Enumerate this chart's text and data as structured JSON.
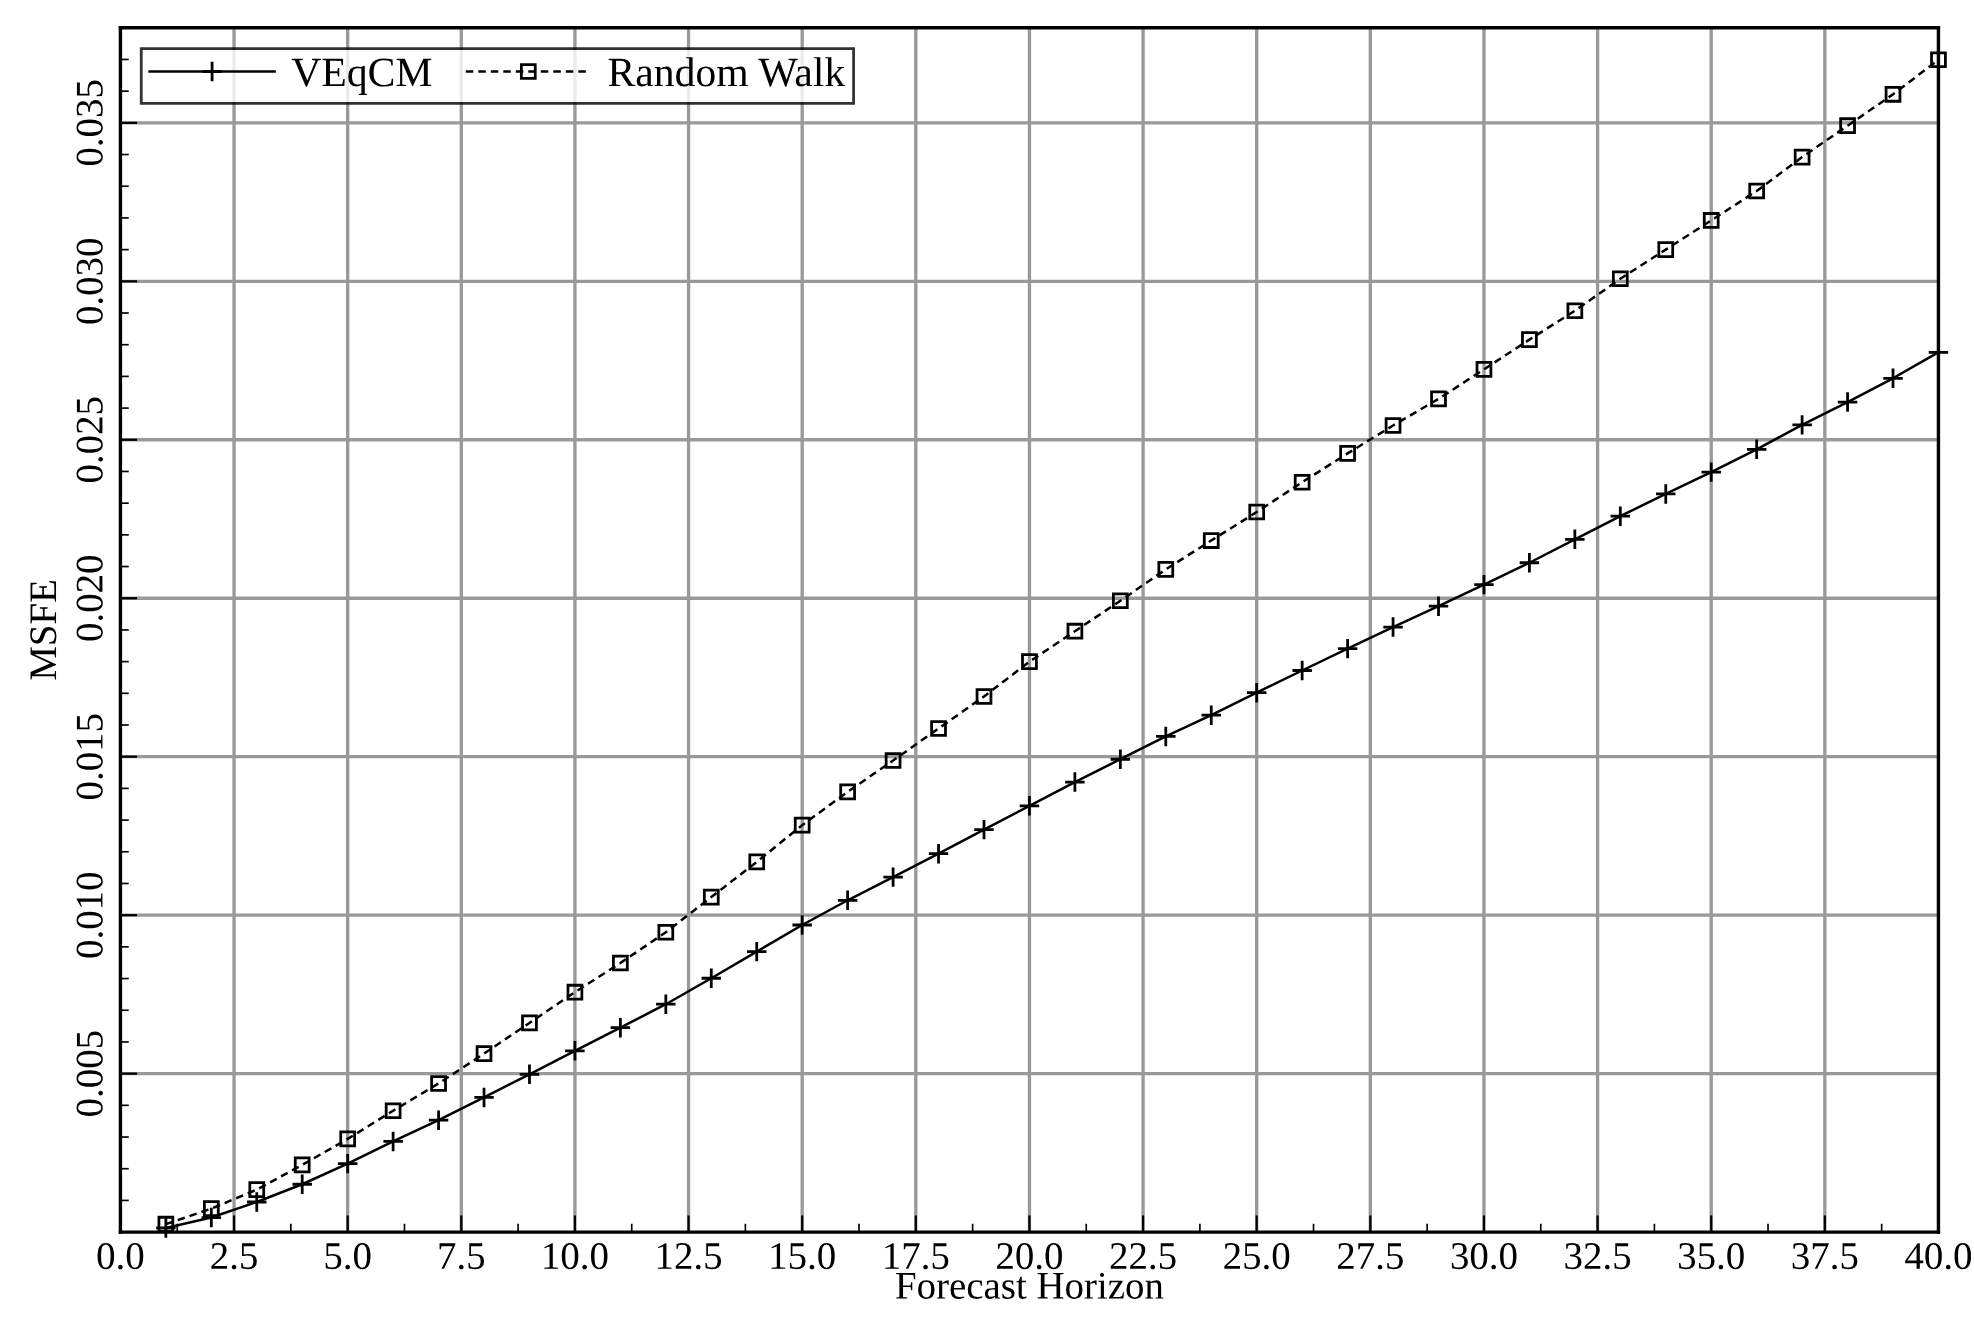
{
  "chart_data": {
    "type": "line",
    "xlabel": "Forecast Horizon",
    "ylabel": "MSFE",
    "x": [
      1,
      2,
      3,
      4,
      5,
      6,
      7,
      8,
      9,
      10,
      11,
      12,
      13,
      14,
      15,
      16,
      17,
      18,
      19,
      20,
      21,
      22,
      23,
      24,
      25,
      26,
      27,
      28,
      29,
      30,
      31,
      32,
      33,
      34,
      35,
      36,
      37,
      38,
      39,
      40
    ],
    "series": [
      {
        "name": "VEqCM",
        "color": "#000000",
        "marker": "cross",
        "line_style": "solid",
        "values": [
          0.00013,
          0.00046,
          0.00095,
          0.00151,
          0.00216,
          0.00286,
          0.00353,
          0.00425,
          0.00498,
          0.00572,
          0.00645,
          0.00719,
          0.00801,
          0.00885,
          0.00969,
          0.01047,
          0.0112,
          0.01194,
          0.0127,
          0.01345,
          0.0142,
          0.01492,
          0.01564,
          0.01631,
          0.01702,
          0.01772,
          0.01841,
          0.01909,
          0.01975,
          0.02043,
          0.02112,
          0.02186,
          0.02259,
          0.02329,
          0.02398,
          0.0247,
          0.02547,
          0.02619,
          0.02694,
          0.02776
        ]
      },
      {
        "name": "Random Walk",
        "color": "#000000",
        "marker": "square",
        "line_style": "dashed",
        "values": [
          0.00025,
          0.00074,
          0.00134,
          0.00212,
          0.00294,
          0.00383,
          0.00469,
          0.00563,
          0.0066,
          0.00757,
          0.00849,
          0.00946,
          0.01057,
          0.01168,
          0.01284,
          0.01389,
          0.01488,
          0.01589,
          0.0169,
          0.018,
          0.01896,
          0.01992,
          0.02091,
          0.02182,
          0.02272,
          0.02366,
          0.02457,
          0.02545,
          0.02629,
          0.02722,
          0.02816,
          0.02907,
          0.03008,
          0.031,
          0.03192,
          0.03285,
          0.03392,
          0.03491,
          0.0359,
          0.03699
        ]
      }
    ],
    "xlim": [
      0,
      40
    ],
    "xticks": [
      {
        "value": 0,
        "label": "0.0"
      },
      2.5,
      {
        "value": 5,
        "label": "5.0"
      },
      7.5,
      {
        "value": 10,
        "label": "10.0"
      },
      12.5,
      {
        "value": 15,
        "label": "15.0"
      },
      17.5,
      {
        "value": 20,
        "label": "20.0"
      },
      22.5,
      {
        "value": 25,
        "label": "25.0"
      },
      27.5,
      {
        "value": 30,
        "label": "30.0"
      },
      32.5,
      {
        "value": 35,
        "label": "35.0"
      },
      37.5,
      {
        "value": 40,
        "label": "40.0"
      }
    ],
    "ylim": [
      0,
      0.038
    ],
    "yticks": [
      0.005,
      {
        "value": 0.01,
        "label": "0.010"
      },
      0.015,
      {
        "value": 0.02,
        "label": "0.020"
      },
      0.025,
      {
        "value": 0.03,
        "label": "0.030"
      },
      0.035
    ],
    "grid": true,
    "legend": "top left"
  }
}
